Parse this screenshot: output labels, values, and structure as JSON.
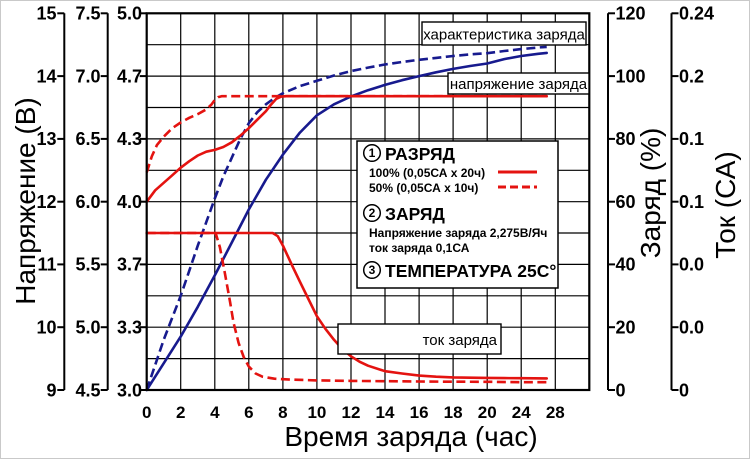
{
  "colors": {
    "red": "#e41310",
    "blue": "#171a8e",
    "axis": "#000000",
    "background": "#ffffff"
  },
  "chart_data": {
    "type": "line",
    "title": "",
    "x_axis": {
      "label": "Время заряда (час)",
      "tick_labels": [
        "0",
        "2",
        "4",
        "6",
        "8",
        "10",
        "12",
        "14",
        "16",
        "18",
        "20",
        "24",
        "28"
      ],
      "tick_values": [
        0,
        2,
        4,
        6,
        8,
        10,
        12,
        14,
        16,
        18,
        20,
        24,
        28
      ],
      "scale_note": "равномерная сетка: 2 ч/деление до 20 ч, далее 4 ч/деление"
    },
    "y_axes_left": [
      {
        "name": "Напряжение (В)",
        "ticks": [
          "15",
          "14",
          "13",
          "12",
          "11",
          "10",
          "9"
        ],
        "range": [
          9,
          15
        ]
      },
      {
        "name": "",
        "ticks": [
          "7.5",
          "7.0",
          "6.5",
          "6.0",
          "5.5",
          "5.0",
          "4.5"
        ],
        "range": [
          4.5,
          7.5
        ]
      },
      {
        "name": "",
        "ticks": [
          "5.0",
          "4.7",
          "4.3",
          "4.0",
          "3.7",
          "3.3",
          "3.0"
        ],
        "range": [
          3.0,
          5.0
        ]
      }
    ],
    "y_axes_right": [
      {
        "name": "Заряд (%)",
        "ticks": [
          "120",
          "100",
          "80",
          "60",
          "40",
          "20",
          "0"
        ],
        "range": [
          0,
          120
        ]
      },
      {
        "name": "Ток (СА)",
        "ticks": [
          "0.24",
          "0.2",
          "0.1",
          "0.1",
          "0.0",
          "0.0",
          "0"
        ],
        "range": [
          0,
          0.24
        ]
      }
    ],
    "series": [
      {
        "id": "charge-100",
        "label": "характеристика заряда (100% разряд)",
        "axis": "charge",
        "style": "solid",
        "color": "blue",
        "points": [
          [
            0,
            0
          ],
          [
            1,
            8.5
          ],
          [
            2,
            17
          ],
          [
            3,
            26.5
          ],
          [
            4,
            36.5
          ],
          [
            5,
            47
          ],
          [
            6,
            57.5
          ],
          [
            7,
            67
          ],
          [
            8,
            75
          ],
          [
            9,
            82
          ],
          [
            10,
            87.5
          ],
          [
            11,
            91
          ],
          [
            12,
            93.5
          ],
          [
            13,
            95.5
          ],
          [
            14,
            97.2
          ],
          [
            15,
            98.7
          ],
          [
            16,
            100
          ],
          [
            17,
            101.2
          ],
          [
            18,
            102.3
          ],
          [
            19,
            103.2
          ],
          [
            20,
            104
          ],
          [
            22,
            105.4
          ],
          [
            24,
            106.4
          ],
          [
            26,
            107.1
          ],
          [
            27,
            107.4
          ]
        ]
      },
      {
        "id": "charge-50",
        "label": "характеристика заряда (50% разряд)",
        "axis": "charge",
        "style": "dashed",
        "color": "blue",
        "points": [
          [
            0,
            0
          ],
          [
            0.5,
            8
          ],
          [
            1,
            16
          ],
          [
            1.5,
            23
          ],
          [
            2,
            30
          ],
          [
            2.5,
            38
          ],
          [
            3,
            46
          ],
          [
            3.5,
            53.5
          ],
          [
            4,
            61
          ],
          [
            4.5,
            68
          ],
          [
            5,
            74
          ],
          [
            5.5,
            80
          ],
          [
            6,
            85
          ],
          [
            6.5,
            88.5
          ],
          [
            7,
            91
          ],
          [
            7.5,
            93
          ],
          [
            8,
            94.5
          ],
          [
            9,
            96.8
          ],
          [
            10,
            98.5
          ],
          [
            11,
            100.2
          ],
          [
            12,
            101.6
          ],
          [
            13,
            102.7
          ],
          [
            14,
            103.7
          ],
          [
            15,
            104.5
          ],
          [
            16,
            105.2
          ],
          [
            17,
            105.8
          ],
          [
            18,
            106.4
          ],
          [
            19,
            106.9
          ],
          [
            20,
            107.3
          ],
          [
            22,
            108
          ],
          [
            24,
            108.6
          ],
          [
            26,
            109.1
          ],
          [
            27,
            109.3
          ]
        ]
      },
      {
        "id": "voltage-100",
        "label": "напряжение заряда (100% разряд)",
        "axis": "voltage",
        "style": "solid",
        "color": "red",
        "points": [
          [
            0,
            4.0
          ],
          [
            0.5,
            4.06
          ],
          [
            1,
            4.1
          ],
          [
            1.5,
            4.14
          ],
          [
            2,
            4.18
          ],
          [
            2.5,
            4.215
          ],
          [
            3,
            4.245
          ],
          [
            3.5,
            4.265
          ],
          [
            4,
            4.275
          ],
          [
            4.5,
            4.29
          ],
          [
            5,
            4.315
          ],
          [
            5.5,
            4.35
          ],
          [
            6,
            4.39
          ],
          [
            6.5,
            4.435
          ],
          [
            7,
            4.48
          ],
          [
            7.3,
            4.515
          ],
          [
            7.6,
            4.545
          ],
          [
            7.9,
            4.558
          ],
          [
            8.2,
            4.56
          ],
          [
            27,
            4.56
          ]
        ]
      },
      {
        "id": "voltage-50",
        "label": "напряжение заряда (50% разряд)",
        "axis": "voltage",
        "style": "dashed",
        "color": "red",
        "points": [
          [
            0,
            4.155
          ],
          [
            0.3,
            4.24
          ],
          [
            0.6,
            4.3
          ],
          [
            1,
            4.345
          ],
          [
            1.5,
            4.39
          ],
          [
            2,
            4.42
          ],
          [
            2.5,
            4.445
          ],
          [
            3,
            4.465
          ],
          [
            3.5,
            4.49
          ],
          [
            3.8,
            4.515
          ],
          [
            4.0,
            4.54
          ],
          [
            4.2,
            4.555
          ],
          [
            4.4,
            4.56
          ],
          [
            27,
            4.56
          ]
        ]
      },
      {
        "id": "current-100",
        "label": "ток заряда (100% разряд)",
        "axis": "current",
        "style": "solid",
        "color": "red",
        "points": [
          [
            0,
            0.1
          ],
          [
            7.4,
            0.1
          ],
          [
            7.7,
            0.098
          ],
          [
            8,
            0.092
          ],
          [
            8.3,
            0.085
          ],
          [
            8.6,
            0.078
          ],
          [
            9,
            0.069
          ],
          [
            9.5,
            0.058
          ],
          [
            10,
            0.047
          ],
          [
            10.5,
            0.039
          ],
          [
            11,
            0.032
          ],
          [
            11.5,
            0.026
          ],
          [
            12,
            0.0215
          ],
          [
            12.5,
            0.018
          ],
          [
            13,
            0.0155
          ],
          [
            14,
            0.012
          ],
          [
            15,
            0.0105
          ],
          [
            16,
            0.0092
          ],
          [
            17,
            0.0085
          ],
          [
            18,
            0.008
          ],
          [
            20,
            0.0077
          ],
          [
            22,
            0.0076
          ],
          [
            24,
            0.0075
          ],
          [
            27,
            0.0074
          ]
        ]
      },
      {
        "id": "current-50",
        "label": "ток заряда (50% разряд)",
        "axis": "current",
        "style": "dashed",
        "color": "red",
        "points": [
          [
            0,
            0.1
          ],
          [
            4.05,
            0.1
          ],
          [
            4.3,
            0.091
          ],
          [
            4.6,
            0.074
          ],
          [
            4.9,
            0.056
          ],
          [
            5.1,
            0.043
          ],
          [
            5.4,
            0.03
          ],
          [
            5.7,
            0.021
          ],
          [
            6,
            0.015
          ],
          [
            6.4,
            0.0105
          ],
          [
            6.8,
            0.0085
          ],
          [
            7.5,
            0.0072
          ],
          [
            8.5,
            0.0066
          ],
          [
            10,
            0.0061
          ],
          [
            12,
            0.0058
          ],
          [
            14,
            0.0056
          ],
          [
            16,
            0.0054
          ],
          [
            18,
            0.0053
          ],
          [
            20,
            0.0052
          ],
          [
            24,
            0.005
          ],
          [
            27,
            0.005
          ]
        ]
      }
    ],
    "annotations": [
      {
        "id": "charge-curve-label",
        "text": "характеристика заряда"
      },
      {
        "id": "charge-voltage-label",
        "text": "напряжение заряда"
      },
      {
        "id": "charge-current-label",
        "text": "ток заряда"
      }
    ],
    "legend": {
      "sections": [
        {
          "number": "1",
          "title": "РАЗРЯД",
          "lines": [
            {
              "label": "100% (0,05СА x 20ч)",
              "style": "solid"
            },
            {
              "label": "50% (0,05СА x 10ч)",
              "style": "dashed"
            }
          ]
        },
        {
          "number": "2",
          "title": "ЗАРЯД",
          "lines": [
            {
              "label": "Напряжение заряда 2,275В/Яч"
            },
            {
              "label": "ток заряда 0,1СА"
            }
          ]
        },
        {
          "number": "3",
          "title": "ТЕМПЕРАТУРА 25С°",
          "lines": []
        }
      ]
    }
  }
}
